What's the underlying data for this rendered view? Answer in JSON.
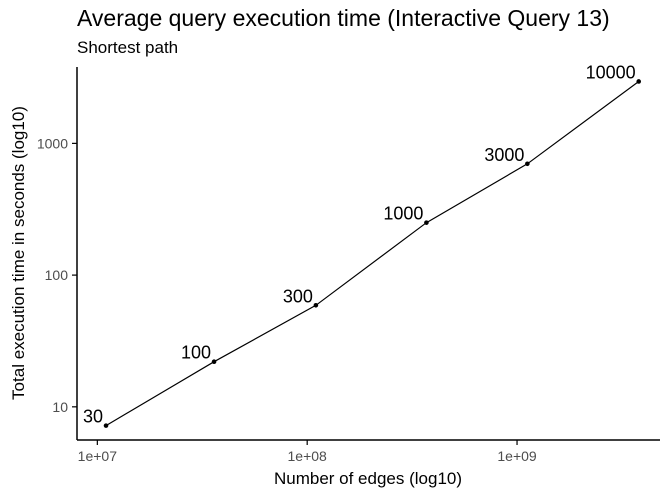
{
  "chart_data": {
    "type": "line",
    "title": "Average query execution time (Interactive Query 13)",
    "subtitle": "Shortest path",
    "xlabel": "Number of edges (log10)",
    "ylabel": "Total execution time in seconds (log10)",
    "x_scale": "log10",
    "y_scale": "log10",
    "xlim": [
      8000000,
      4800000000
    ],
    "ylim": [
      5.6,
      3800
    ],
    "x_ticks": [
      {
        "value": 10000000,
        "label": "1e+07"
      },
      {
        "value": 100000000,
        "label": "1e+08"
      },
      {
        "value": 1000000000,
        "label": "1e+09"
      }
    ],
    "y_ticks": [
      {
        "value": 10,
        "label": "10"
      },
      {
        "value": 100,
        "label": "100"
      },
      {
        "value": 1000,
        "label": "1000"
      }
    ],
    "grid": false,
    "legend": "none",
    "line_color": "#000000",
    "points": [
      {
        "x": 11000000,
        "y": 7.2,
        "label": "30"
      },
      {
        "x": 36000000,
        "y": 22,
        "label": "100"
      },
      {
        "x": 110000000,
        "y": 59,
        "label": "300"
      },
      {
        "x": 370000000,
        "y": 250,
        "label": "1000"
      },
      {
        "x": 1120000000,
        "y": 700,
        "label": "3000"
      },
      {
        "x": 3800000000,
        "y": 2950,
        "label": "10000"
      }
    ]
  }
}
